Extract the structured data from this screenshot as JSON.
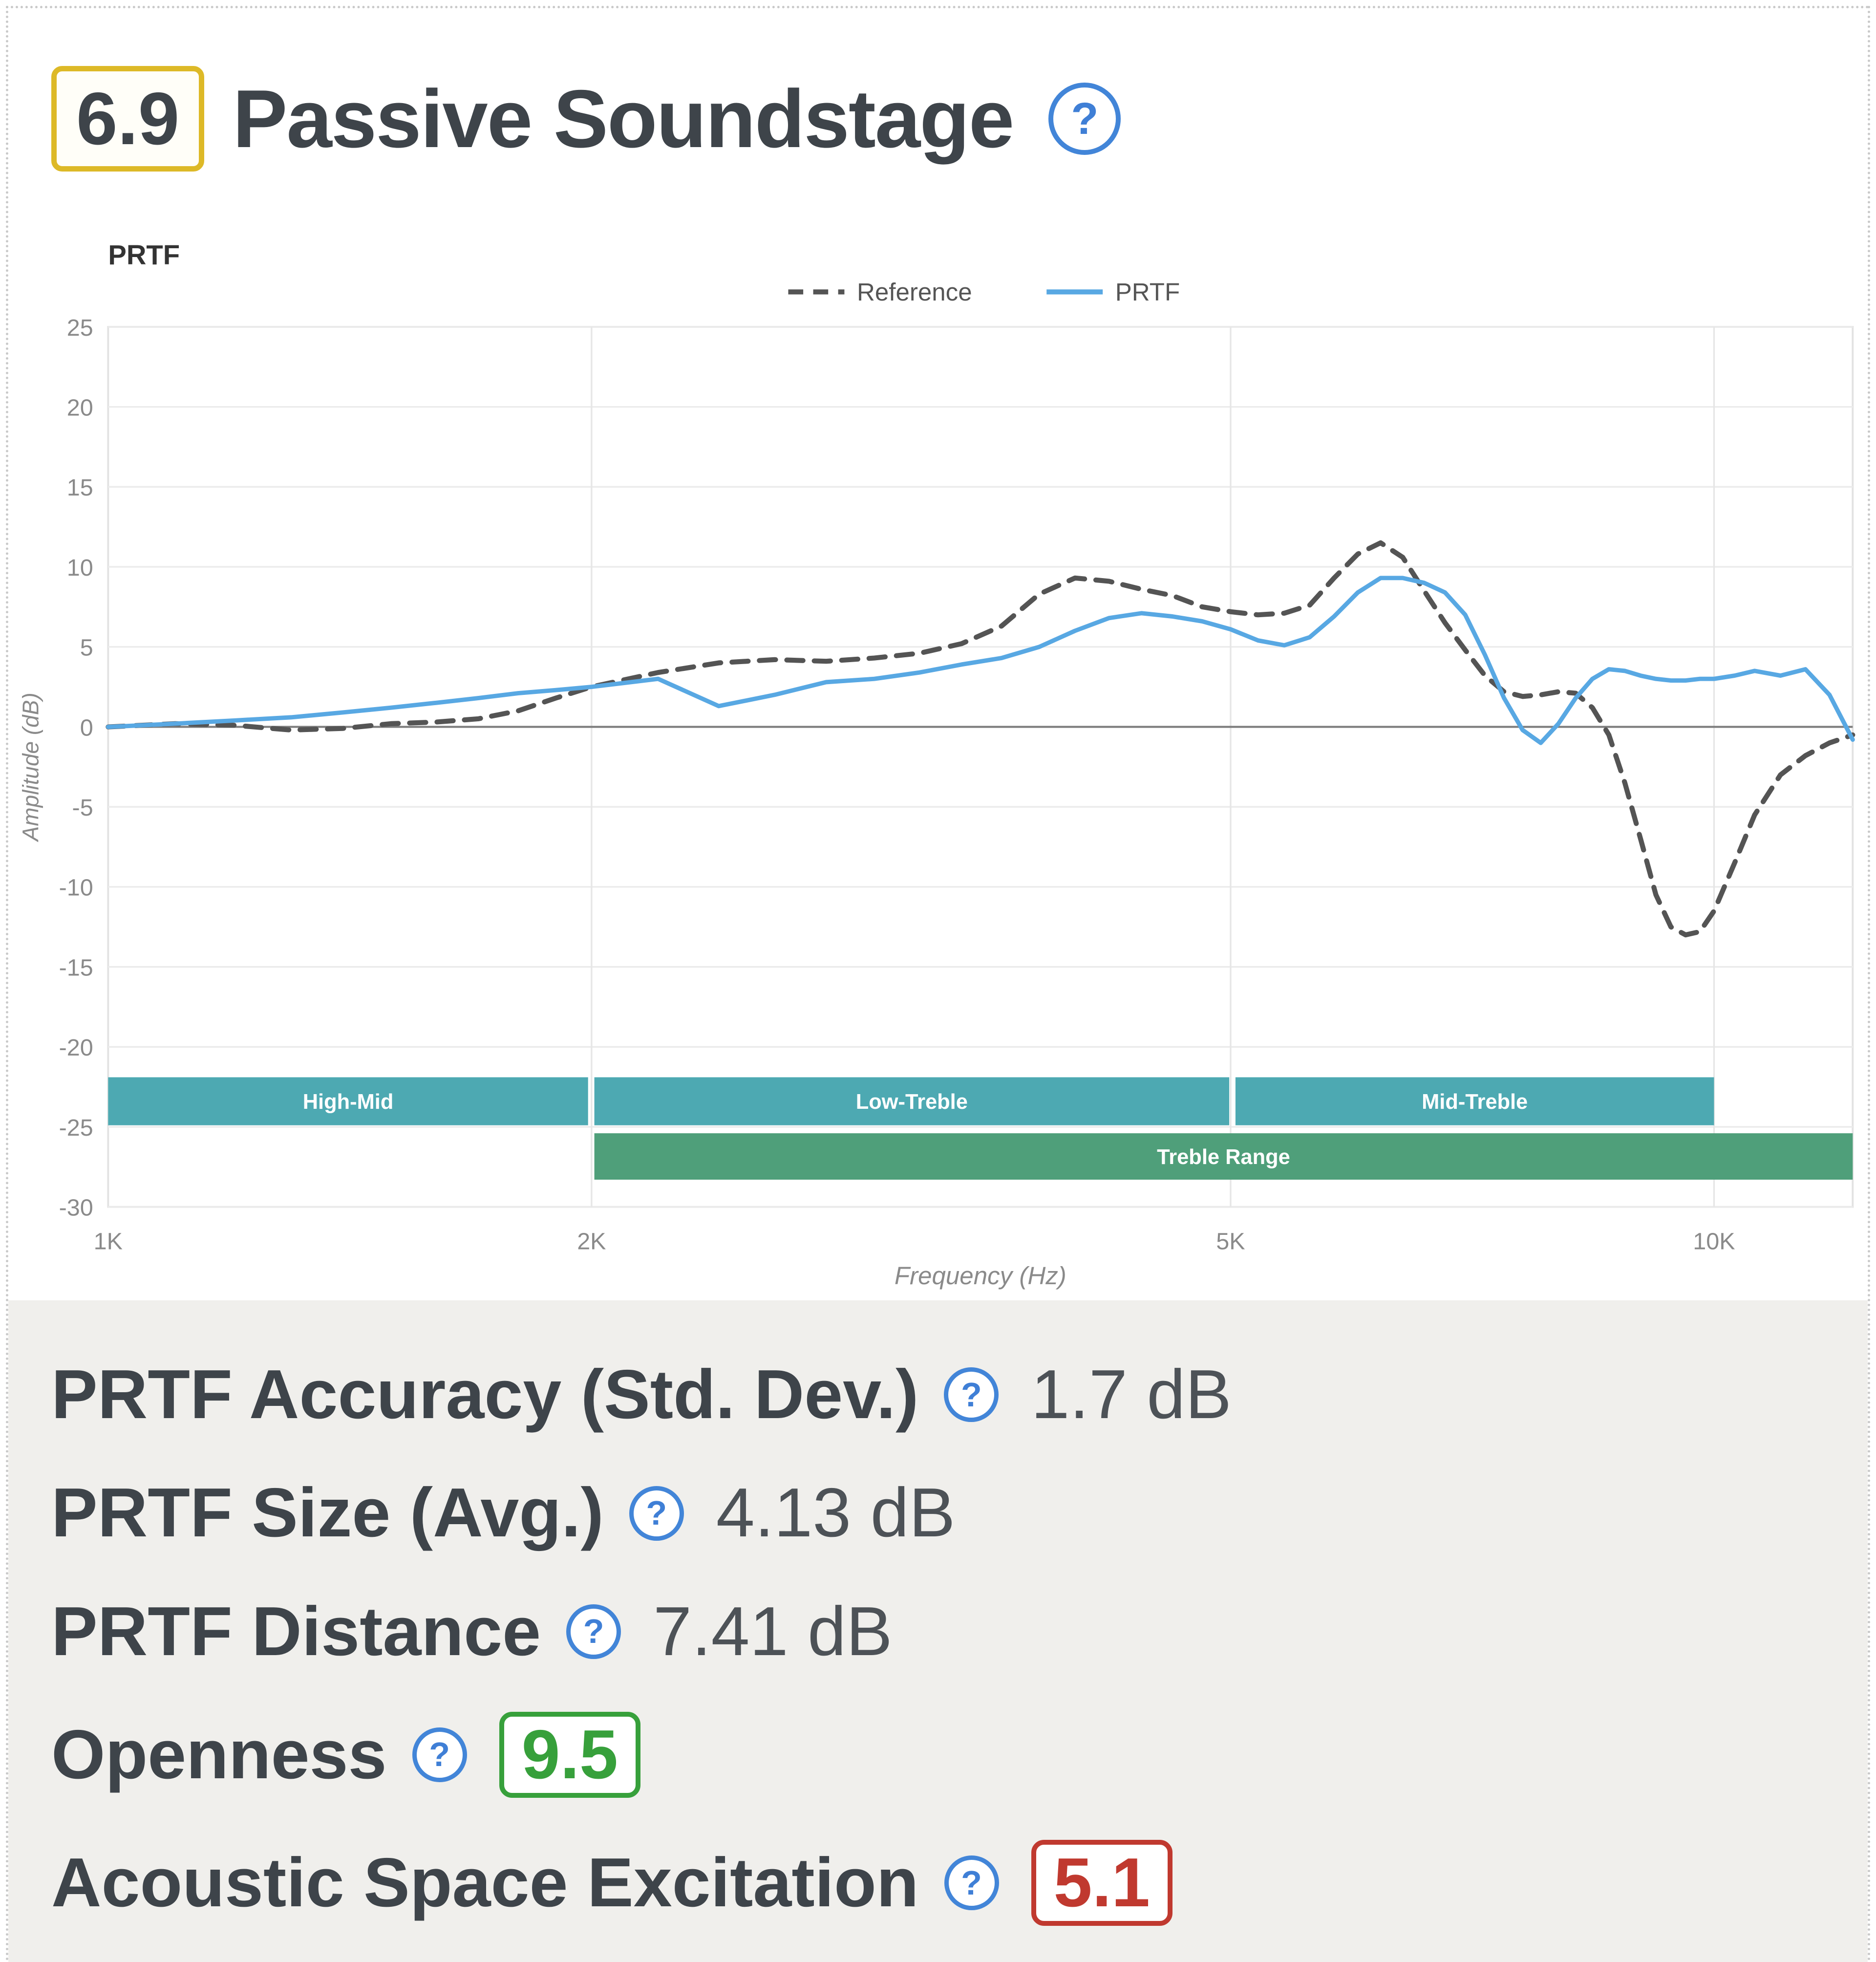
{
  "header": {
    "score": "6.9",
    "title": "Passive Soundstage",
    "help_glyph": "?"
  },
  "chart_data": {
    "type": "line",
    "title": "PRTF",
    "xlabel": "Frequency (Hz)",
    "ylabel": "Amplitude (dB)",
    "x_scale": "log",
    "xlim": [
      1000,
      12200
    ],
    "ylim": [
      -30,
      25
    ],
    "x_ticks": [
      "1K",
      "2K",
      "5K",
      "10K"
    ],
    "x_tick_values": [
      1000,
      2000,
      5000,
      10000
    ],
    "y_tick_step": 5,
    "grid": true,
    "legend_position": "top-center",
    "series": [
      {
        "name": "Reference",
        "style": "dashed",
        "color": "#545454",
        "x": [
          1000,
          1100,
          1200,
          1300,
          1400,
          1500,
          1600,
          1700,
          1800,
          1900,
          2000,
          2200,
          2400,
          2600,
          2800,
          3000,
          3200,
          3400,
          3600,
          3800,
          4000,
          4200,
          4400,
          4600,
          4800,
          5000,
          5200,
          5400,
          5600,
          5800,
          6000,
          6200,
          6400,
          6600,
          6800,
          7000,
          7200,
          7400,
          7600,
          7800,
          8000,
          8200,
          8400,
          8600,
          8800,
          9000,
          9200,
          9400,
          9600,
          9800,
          10000,
          10300,
          10600,
          11000,
          11400,
          11800,
          12200
        ],
        "y": [
          0,
          0.2,
          0.1,
          -0.2,
          -0.1,
          0.2,
          0.3,
          0.5,
          1.0,
          1.8,
          2.5,
          3.4,
          4.0,
          4.2,
          4.1,
          4.3,
          4.6,
          5.2,
          6.3,
          8.3,
          9.3,
          9.1,
          8.6,
          8.2,
          7.5,
          7.2,
          7.0,
          7.1,
          7.6,
          9.3,
          10.8,
          11.5,
          10.6,
          8.5,
          6.5,
          4.8,
          3.2,
          2.2,
          1.9,
          2.0,
          2.2,
          2.1,
          1.2,
          -0.5,
          -3.5,
          -7.0,
          -10.5,
          -12.5,
          -13.0,
          -12.8,
          -11.5,
          -8.5,
          -5.5,
          -3.0,
          -1.8,
          -1.0,
          -0.5
        ]
      },
      {
        "name": "PRTF",
        "style": "solid",
        "color": "#58a8e3",
        "x": [
          1000,
          1100,
          1200,
          1300,
          1400,
          1500,
          1600,
          1700,
          1800,
          1900,
          2000,
          2200,
          2400,
          2600,
          2800,
          3000,
          3200,
          3400,
          3600,
          3800,
          4000,
          4200,
          4400,
          4600,
          4800,
          5000,
          5200,
          5400,
          5600,
          5800,
          6000,
          6200,
          6400,
          6600,
          6800,
          7000,
          7200,
          7400,
          7600,
          7800,
          8000,
          8200,
          8400,
          8600,
          8800,
          9000,
          9200,
          9400,
          9600,
          9800,
          10000,
          10300,
          10600,
          11000,
          11400,
          11800,
          12200
        ],
        "y": [
          0,
          0.2,
          0.4,
          0.6,
          0.9,
          1.2,
          1.5,
          1.8,
          2.1,
          2.3,
          2.5,
          3.0,
          1.3,
          2.0,
          2.8,
          3.0,
          3.4,
          3.9,
          4.3,
          5.0,
          6.0,
          6.8,
          7.1,
          6.9,
          6.6,
          6.1,
          5.4,
          5.1,
          5.6,
          6.9,
          8.4,
          9.3,
          9.3,
          9.0,
          8.4,
          7.0,
          4.5,
          1.8,
          -0.2,
          -1.0,
          0.2,
          1.8,
          3.0,
          3.6,
          3.5,
          3.2,
          3.0,
          2.9,
          2.9,
          3.0,
          3.0,
          3.2,
          3.5,
          3.2,
          3.6,
          2.0,
          -0.8
        ]
      }
    ],
    "bands": [
      {
        "label": "High-Mid",
        "x1": 1000,
        "x2": 1990,
        "y1": -21.9,
        "y2": -24.9,
        "color": "#4da9b2"
      },
      {
        "label": "Low-Treble",
        "x1": 2008,
        "x2": 4990,
        "y1": -21.9,
        "y2": -24.9,
        "color": "#4da9b2"
      },
      {
        "label": "Mid-Treble",
        "x1": 5035,
        "x2": 10000,
        "y1": -21.9,
        "y2": -24.9,
        "color": "#4da9b2"
      },
      {
        "label": "Treble Range",
        "x1": 2008,
        "x2": 12200,
        "y1": -25.4,
        "y2": -28.3,
        "color": "#4f9f7a"
      }
    ]
  },
  "metrics": [
    {
      "label": "PRTF Accuracy (Std. Dev.)",
      "value": "1.7 dB"
    },
    {
      "label": "PRTF Size (Avg.)",
      "value": "4.13 dB"
    },
    {
      "label": "PRTF Distance",
      "value": "7.41 dB"
    },
    {
      "label": "Openness",
      "score": "9.5",
      "score_color": "green"
    },
    {
      "label": "Acoustic Space Excitation",
      "score": "5.1",
      "score_color": "red"
    }
  ]
}
